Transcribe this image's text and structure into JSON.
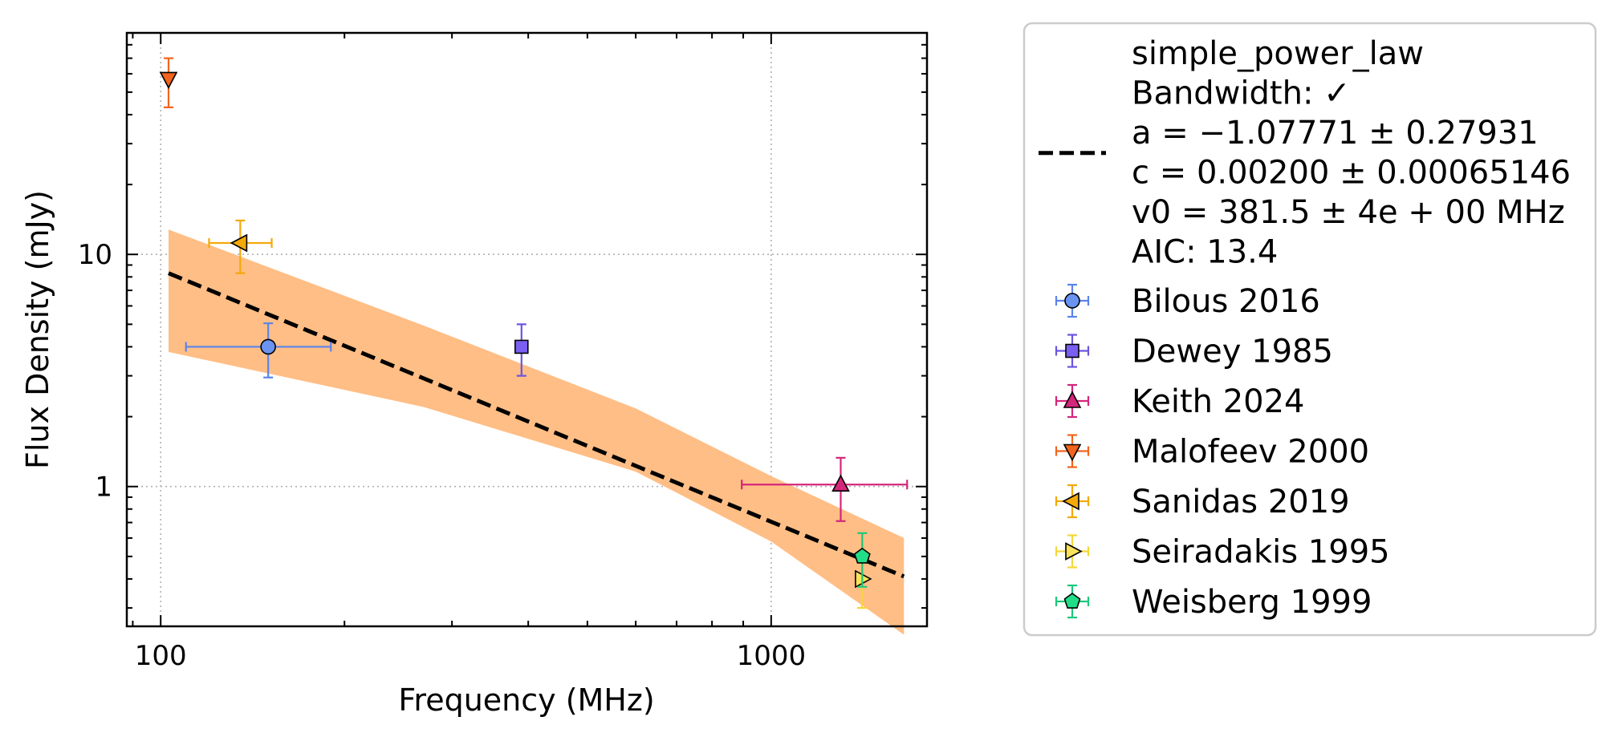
{
  "chart_data": {
    "type": "scatter",
    "xlabel": "Frequency (MHz)",
    "ylabel": "Flux Density (mJy)",
    "xscale": "log",
    "yscale": "log",
    "xlim": [
      88,
      1800
    ],
    "ylim": [
      0.25,
      90
    ],
    "xticks": [
      100,
      1000
    ],
    "xtick_labels": [
      "100",
      "1000"
    ],
    "yticks": [
      1,
      10
    ],
    "ytick_labels": [
      "1",
      "10"
    ],
    "grid": "major, dotted",
    "legend_placement": "outside right",
    "fit": {
      "label_lines": [
        "simple_power_law",
        "Bandwidth: ✓",
        "a = −1.07771 ± 0.27931",
        "c = 0.00200 ± 0.00065146",
        "v0 = 381.5 ± 4e + 00 MHz",
        "AIC: 13.4"
      ],
      "line_color": "#000000",
      "band_color": "#ffbe85",
      "line": {
        "x": [
          103,
          1650
        ],
        "y": [
          8.3,
          0.41
        ]
      },
      "band_upper": {
        "x": [
          103,
          270,
          600,
          1000,
          1650
        ],
        "y": [
          12.8,
          4.93,
          2.17,
          1.11,
          0.6
        ]
      },
      "band_lower": {
        "x": [
          103,
          270,
          600,
          1000,
          1650
        ],
        "y": [
          3.8,
          2.2,
          1.16,
          0.58,
          0.23
        ]
      }
    },
    "series": [
      {
        "name": "Bilous 2016",
        "marker": "circle",
        "color": "#5b84e9",
        "fill": "#6b93f0",
        "points": [
          {
            "x": 150,
            "y": 4.0,
            "xerr": [
              110,
              190
            ],
            "yerr": [
              2.95,
              5.05
            ]
          }
        ]
      },
      {
        "name": "Dewey 1985",
        "marker": "square",
        "color": "#6a55e0",
        "fill": "#7a5ff0",
        "points": [
          {
            "x": 390,
            "y": 4.0,
            "xerr": null,
            "yerr": [
              3.0,
              5.0
            ]
          }
        ]
      },
      {
        "name": "Keith 2024",
        "marker": "triangle-up",
        "color": "#d4267a",
        "fill": "#d4267a",
        "points": [
          {
            "x": 1300,
            "y": 1.02,
            "xerr": [
              895,
              1670
            ],
            "yerr": [
              0.71,
              1.33
            ]
          }
        ]
      },
      {
        "name": "Malofeev 2000",
        "marker": "triangle-down",
        "color": "#f2641e",
        "fill": "#f2641e",
        "points": [
          {
            "x": 103,
            "y": 57,
            "xerr": null,
            "yerr": [
              43,
              70
            ]
          }
        ]
      },
      {
        "name": "Sanidas 2019",
        "marker": "triangle-left",
        "color": "#f3a90a",
        "fill": "#f3a90a",
        "points": [
          {
            "x": 135,
            "y": 11.2,
            "xerr": [
              120,
              152
            ],
            "yerr": [
              8.3,
              14.0
            ]
          }
        ]
      },
      {
        "name": "Seiradakis 1995",
        "marker": "triangle-right",
        "color": "#f5d63a",
        "fill": "#f9e25a",
        "points": [
          {
            "x": 1408,
            "y": 0.4,
            "xerr": null,
            "yerr": [
              0.3,
              0.5
            ]
          }
        ]
      },
      {
        "name": "Weisberg 1999",
        "marker": "pentagon",
        "color": "#1ec77a",
        "fill": "#22dd88",
        "points": [
          {
            "x": 1410,
            "y": 0.5,
            "xerr": null,
            "yerr": [
              0.37,
              0.63
            ]
          }
        ]
      }
    ]
  }
}
